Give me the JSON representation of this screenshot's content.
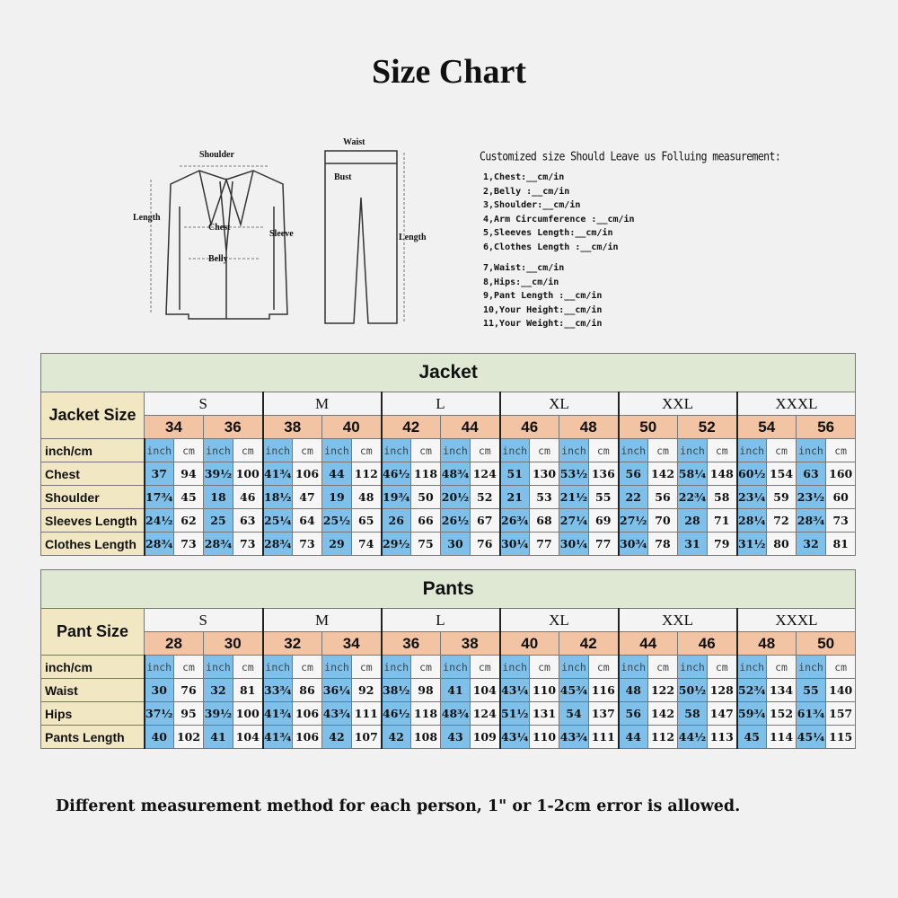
{
  "title": "Size Chart",
  "diagram": {
    "jacket_labels": {
      "shoulder": "Shoulder",
      "length": "Length",
      "chest": "Chest",
      "belly": "Belly",
      "sleeve": "Sleeve"
    },
    "pants_labels": {
      "waist": "Waist",
      "bust": "Bust",
      "length": "Length"
    }
  },
  "custom": {
    "heading": "Customized size Should Leave us Folluing measurement:",
    "items": [
      "1,Chest:__cm/in",
      "2,Belly :__cm/in",
      "3,Shoulder:__cm/in",
      "4,Arm Circumference :__cm/in",
      "5,Sleeves Length:__cm/in",
      "6,Clothes Length :__cm/in",
      "7,Waist:__cm/in",
      "8,Hips:__cm/in",
      "9,Pant Length :__cm/in",
      "10,Your Height:__cm/in",
      "11,Your Weight:__cm/in"
    ]
  },
  "colors": {
    "header_green": "#dfe8d2",
    "label_beige": "#f2e7c3",
    "size_peach": "#f2c4a3",
    "inch_blue": "#7fc0ea"
  },
  "jacket": {
    "section": "Jacket",
    "size_label": "Jacket Size",
    "unit_label": "inch/cm",
    "units": [
      "inch",
      "cm"
    ],
    "letters": [
      "S",
      "M",
      "L",
      "XL",
      "XXL",
      "XXXL"
    ],
    "numbers": [
      "34",
      "36",
      "38",
      "40",
      "42",
      "44",
      "46",
      "48",
      "50",
      "52",
      "54",
      "56"
    ],
    "rows": [
      {
        "label": "Chest",
        "values": [
          "37",
          "94",
          "39½",
          "100",
          "41¾",
          "106",
          "44",
          "112",
          "46½",
          "118",
          "48¾",
          "124",
          "51",
          "130",
          "53½",
          "136",
          "56",
          "142",
          "58¼",
          "148",
          "60½",
          "154",
          "63",
          "160"
        ]
      },
      {
        "label": "Shoulder",
        "values": [
          "17¾",
          "45",
          "18",
          "46",
          "18½",
          "47",
          "19",
          "48",
          "19¾",
          "50",
          "20½",
          "52",
          "21",
          "53",
          "21½",
          "55",
          "22",
          "56",
          "22¾",
          "58",
          "23¼",
          "59",
          "23½",
          "60"
        ]
      },
      {
        "label": "Sleeves Length",
        "values": [
          "24½",
          "62",
          "25",
          "63",
          "25¼",
          "64",
          "25½",
          "65",
          "26",
          "66",
          "26½",
          "67",
          "26¾",
          "68",
          "27¼",
          "69",
          "27½",
          "70",
          "28",
          "71",
          "28¼",
          "72",
          "28¾",
          "73"
        ]
      },
      {
        "label": "Clothes Length",
        "values": [
          "28¾",
          "73",
          "28¾",
          "73",
          "28¾",
          "73",
          "29",
          "74",
          "29½",
          "75",
          "30",
          "76",
          "30¼",
          "77",
          "30¼",
          "77",
          "30¾",
          "78",
          "31",
          "79",
          "31½",
          "80",
          "32",
          "81"
        ]
      }
    ]
  },
  "pants": {
    "section": "Pants",
    "size_label": "Pant Size",
    "unit_label": "inch/cm",
    "units": [
      "inch",
      "cm"
    ],
    "letters": [
      "S",
      "M",
      "L",
      "XL",
      "XXL",
      "XXXL"
    ],
    "numbers": [
      "28",
      "30",
      "32",
      "34",
      "36",
      "38",
      "40",
      "42",
      "44",
      "46",
      "48",
      "50"
    ],
    "rows": [
      {
        "label": "Waist",
        "values": [
          "30",
          "76",
          "32",
          "81",
          "33¾",
          "86",
          "36¼",
          "92",
          "38½",
          "98",
          "41",
          "104",
          "43¼",
          "110",
          "45¾",
          "116",
          "48",
          "122",
          "50½",
          "128",
          "52¾",
          "134",
          "55",
          "140"
        ]
      },
      {
        "label": "Hips",
        "values": [
          "37½",
          "95",
          "39½",
          "100",
          "41¾",
          "106",
          "43¾",
          "111",
          "46½",
          "118",
          "48¾",
          "124",
          "51½",
          "131",
          "54",
          "137",
          "56",
          "142",
          "58",
          "147",
          "59¾",
          "152",
          "61¾",
          "157"
        ]
      },
      {
        "label": "Pants Length",
        "values": [
          "40",
          "102",
          "41",
          "104",
          "41¾",
          "106",
          "42",
          "107",
          "42",
          "108",
          "43",
          "109",
          "43¼",
          "110",
          "43¾",
          "111",
          "44",
          "112",
          "44½",
          "113",
          "45",
          "114",
          "45¼",
          "115"
        ]
      }
    ]
  },
  "note": "Different measurement method for each person,  1\" or 1-2cm error is allowed."
}
